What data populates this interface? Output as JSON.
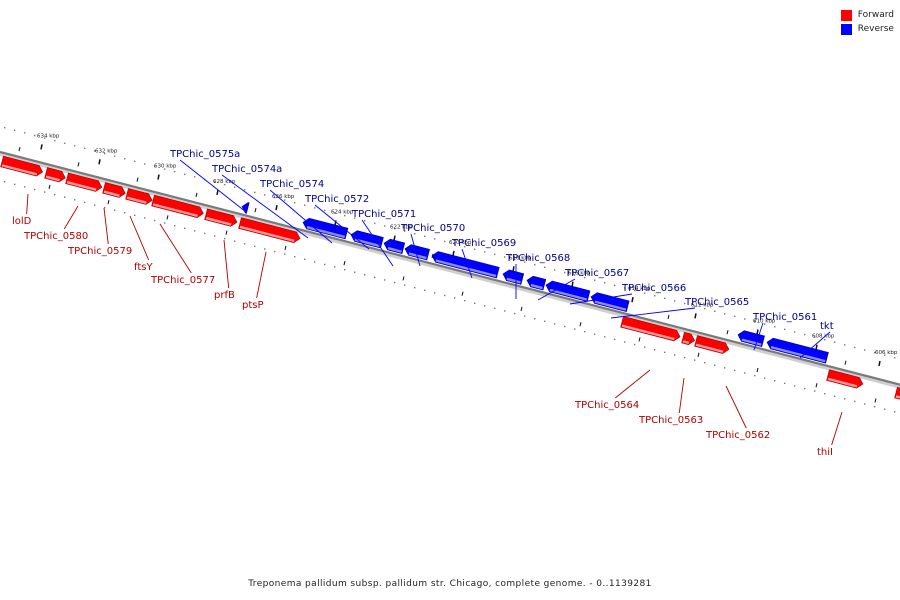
{
  "legend": [
    {
      "label": "Forward",
      "color": "#ff0000"
    },
    {
      "label": "Reverse",
      "color": "#0000ff"
    }
  ],
  "caption": "Treponema pallidum subsp. pallidum str. Chicago, complete genome. - 0..1139281",
  "ruler": [
    "634 kbp",
    "632 kbp",
    "630 kbp",
    "628 kbp",
    "626 kbp",
    "624 kbp",
    "622 kbp",
    "620 kbp",
    "618 kbp",
    "616 kbp",
    "614 kbp",
    "612 kbp",
    "610 kbp",
    "608 kbp",
    "606 kbp"
  ],
  "forward_genes": [
    "lolD",
    "TPChic_0580",
    "TPChic_0579",
    "ftsY",
    "TPChic_0577",
    "prfB",
    "ptsP",
    "TPChic_0564",
    "TPChic_0563",
    "TPChic_0562",
    "thiI"
  ],
  "reverse_genes": [
    "TPChic_0575a",
    "TPChic_0574a",
    "TPChic_0574",
    "TPChic_0572",
    "TPChic_0571",
    "TPChic_0570",
    "TPChic_0569",
    "TPChic_0568",
    "TPChic_0567",
    "TPChic_0566",
    "TPChic_0565",
    "TPChic_0561",
    "tkt"
  ],
  "colors": {
    "forward": "#ff0000",
    "reverse": "#0000ff",
    "forward_label": "#b00000",
    "reverse_label": "#00008b",
    "backbone": "#808080"
  }
}
